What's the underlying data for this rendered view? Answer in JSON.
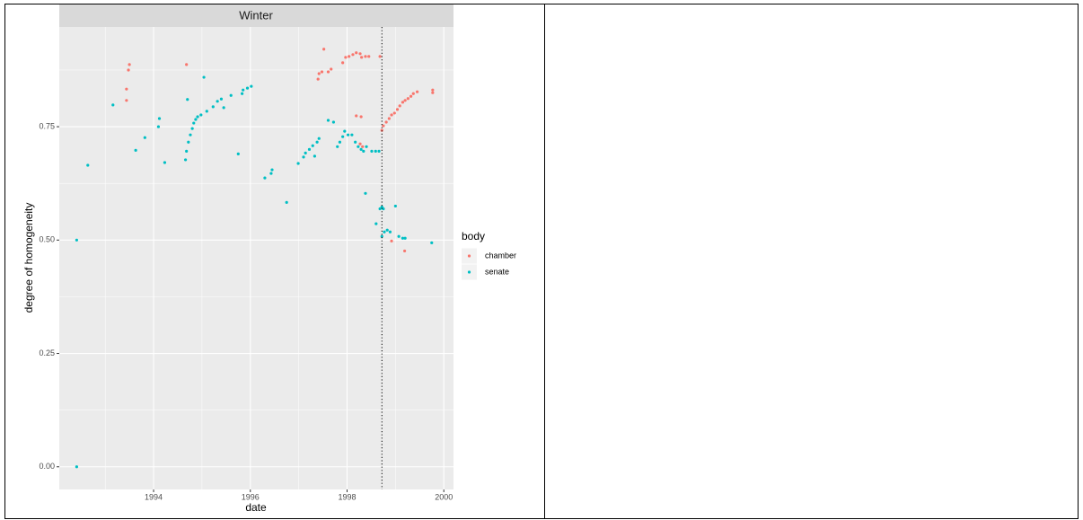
{
  "chart_data": {
    "type": "scatter",
    "title": "Winter",
    "x_label": "date",
    "y_label": "degree of homogeneity",
    "legend_title": "body",
    "xlim": [
      1992.05,
      2000.2
    ],
    "xticks": [
      1994,
      1996,
      1998,
      2000
    ],
    "ylim": [
      -0.05,
      0.97
    ],
    "yticks": [
      {
        "value": 0,
        "label": "0.00"
      },
      {
        "value": 0.25,
        "label": "0.25"
      },
      {
        "value": 0.5,
        "label": "0.50"
      },
      {
        "value": 0.75,
        "label": "0.75"
      }
    ],
    "grid": true,
    "legend": "right",
    "vline": 1998.72,
    "series": [
      {
        "name": "chamber",
        "color": "#F8766D",
        "x": [
          1993.44,
          1993.44,
          1993.48,
          1993.5,
          1994.68,
          1997.4,
          1997.42,
          1997.48,
          1997.52,
          1997.61,
          1997.67,
          1997.91,
          1997.97,
          1998.04,
          1998.12,
          1998.19,
          1998.27,
          1998.3,
          1998.38,
          1998.45,
          1998.68,
          1998.19,
          1998.29,
          1998.27,
          1998.32,
          1998.72,
          1998.75,
          1998.81,
          1998.87,
          1998.92,
          1998.98,
          1999.04,
          1999.09,
          1999.15,
          1999.2,
          1999.26,
          1999.32,
          1999.37,
          1999.45,
          1999.77,
          1999.77,
          1998.92,
          1999.19
        ],
        "values": [
          0.833,
          0.808,
          0.875,
          0.887,
          0.887,
          0.855,
          0.867,
          0.871,
          0.921,
          0.871,
          0.877,
          0.891,
          0.903,
          0.905,
          0.909,
          0.913,
          0.911,
          0.903,
          0.905,
          0.905,
          0.905,
          0.774,
          0.772,
          0.712,
          0.706,
          0.742,
          0.752,
          0.76,
          0.768,
          0.776,
          0.78,
          0.788,
          0.796,
          0.804,
          0.808,
          0.812,
          0.817,
          0.823,
          0.827,
          0.831,
          0.825,
          0.498,
          0.476
        ]
      },
      {
        "name": "senate",
        "color": "#00BFC4",
        "x": [
          1992.41,
          1992.41,
          1992.64,
          1993.16,
          1993.63,
          1993.82,
          1994.1,
          1994.12,
          1994.23,
          1994.7,
          1995.04,
          1994.66,
          1994.68,
          1994.72,
          1994.76,
          1994.8,
          1994.83,
          1994.87,
          1994.91,
          1994.98,
          1995.1,
          1995.23,
          1995.32,
          1995.4,
          1995.45,
          1995.6,
          1995.75,
          1995.83,
          1995.85,
          1995.94,
          1996.02,
          1996.3,
          1996.43,
          1996.45,
          1996.75,
          1996.99,
          1997.1,
          1997.14,
          1997.22,
          1997.29,
          1997.33,
          1997.38,
          1997.42,
          1997.61,
          1997.72,
          1997.8,
          1997.85,
          1997.91,
          1997.95,
          1998.02,
          1998.1,
          1998.17,
          1998.23,
          1998.29,
          1998.34,
          1998.38,
          1998.4,
          1998.51,
          1998.59,
          1998.6,
          1998.66,
          1998.68,
          1998.72,
          1998.75,
          1998.72,
          1998.77,
          1998.83,
          1998.89,
          1999.0,
          1999.07,
          1999.15,
          1999.2,
          1999.75
        ],
        "values": [
          0.0,
          0.5,
          0.665,
          0.798,
          0.698,
          0.726,
          0.75,
          0.768,
          0.671,
          0.81,
          0.859,
          0.677,
          0.696,
          0.716,
          0.732,
          0.746,
          0.758,
          0.766,
          0.772,
          0.776,
          0.784,
          0.794,
          0.806,
          0.811,
          0.792,
          0.819,
          0.69,
          0.823,
          0.831,
          0.835,
          0.839,
          0.637,
          0.647,
          0.655,
          0.583,
          0.669,
          0.683,
          0.692,
          0.7,
          0.708,
          0.685,
          0.716,
          0.724,
          0.764,
          0.76,
          0.706,
          0.716,
          0.728,
          0.74,
          0.732,
          0.732,
          0.716,
          0.706,
          0.7,
          0.696,
          0.603,
          0.706,
          0.696,
          0.696,
          0.536,
          0.696,
          0.569,
          0.573,
          0.569,
          0.508,
          0.518,
          0.522,
          0.518,
          0.575,
          0.508,
          0.504,
          0.504,
          0.494
        ]
      }
    ]
  }
}
